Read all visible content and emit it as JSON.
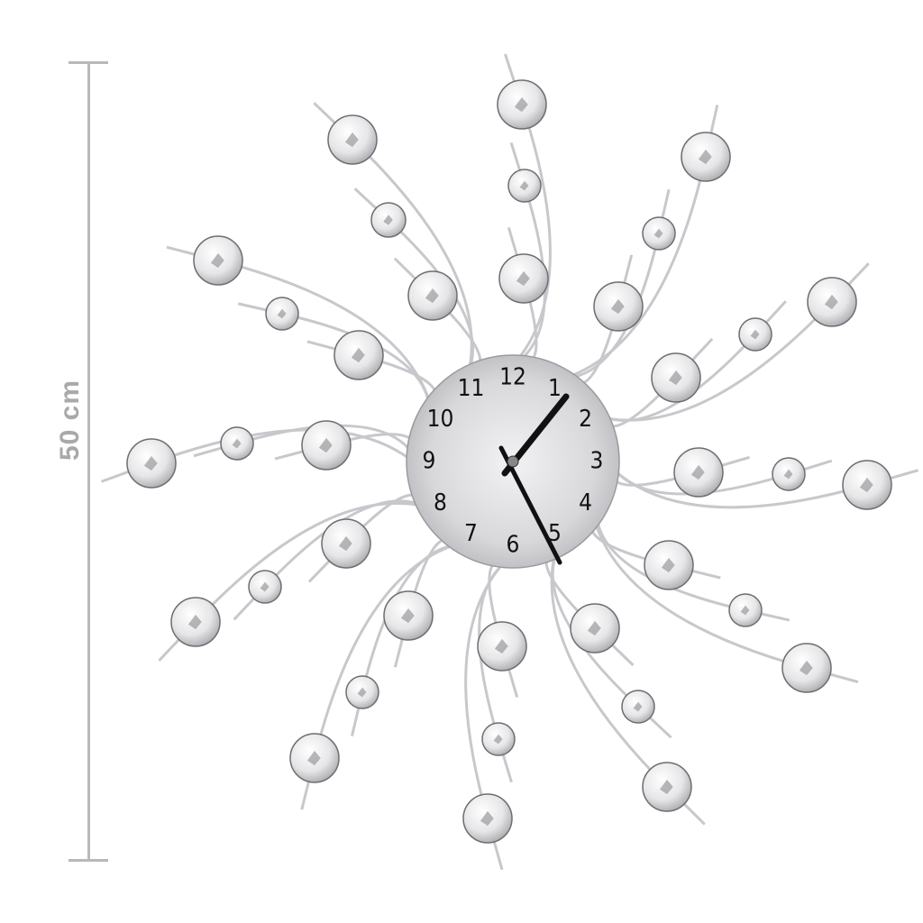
{
  "dimension": {
    "label": "50 cm"
  },
  "clock": {
    "numerals": [
      "12",
      "1",
      "2",
      "3",
      "4",
      "5",
      "6",
      "7",
      "8",
      "9",
      "10",
      "11"
    ],
    "time_shown": "1:25",
    "colors": {
      "face": "#d9d9dc",
      "hands": "#111111",
      "wire": "#c8c8cc",
      "crystal": "#eeeeef"
    }
  }
}
